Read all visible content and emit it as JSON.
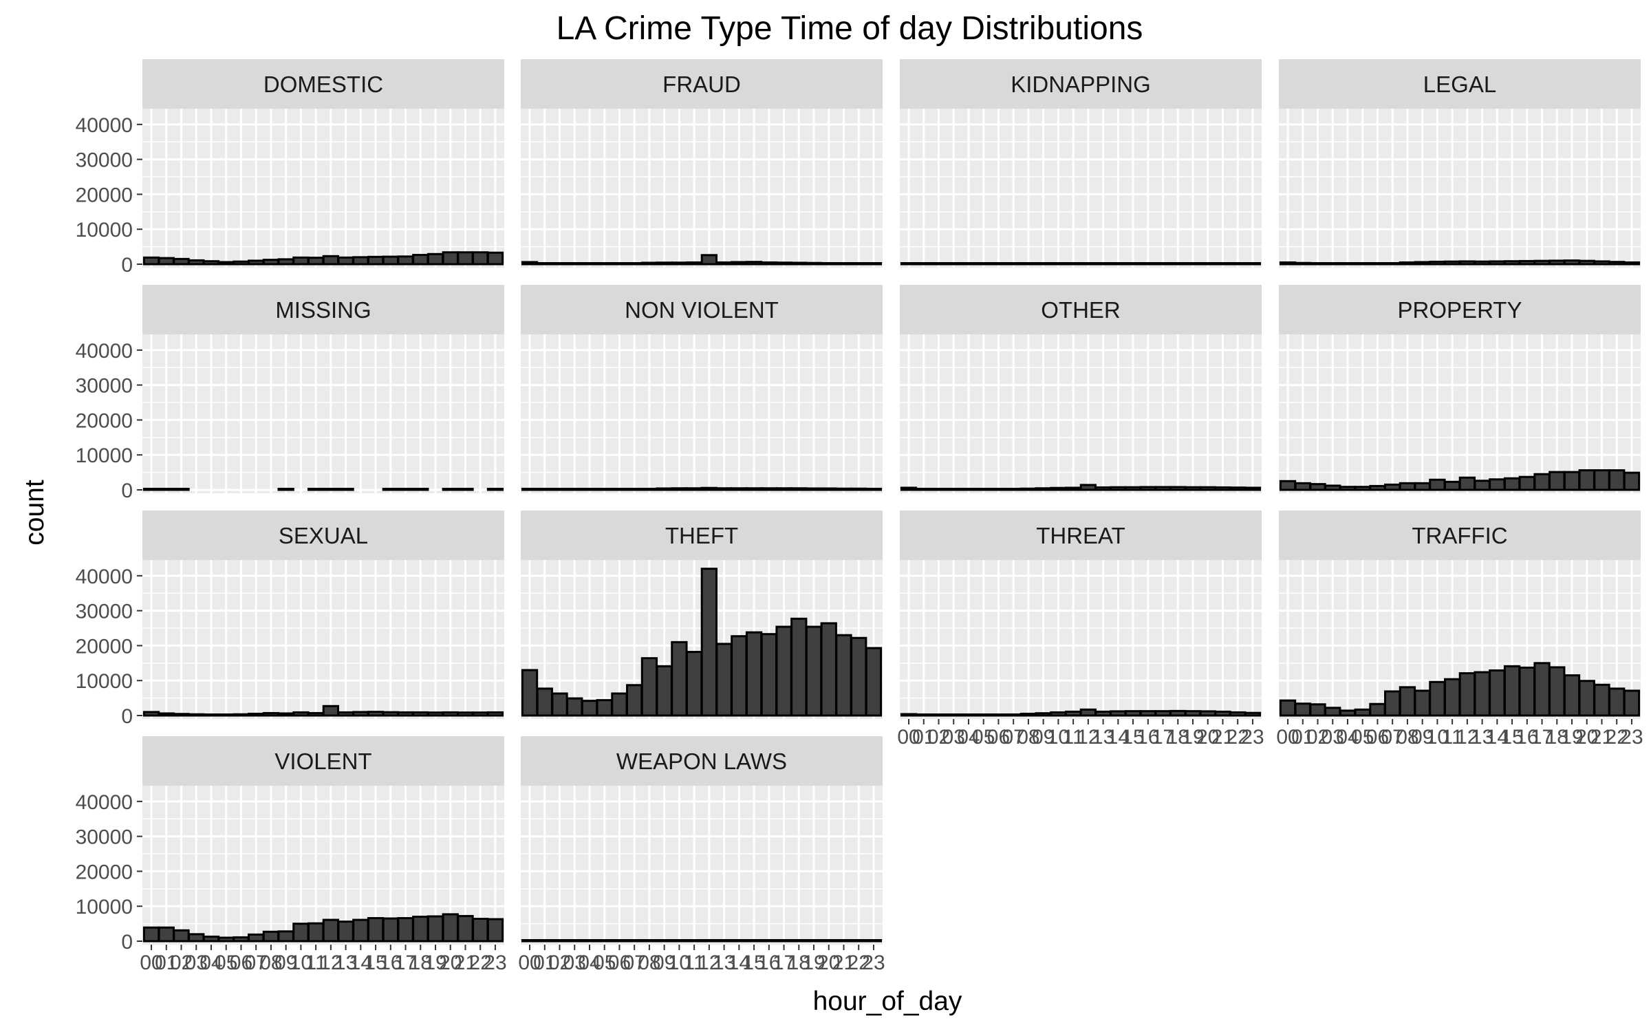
{
  "chart_data": {
    "type": "bar",
    "title": "LA Crime Type Time of day Distributions",
    "xlabel": "hour_of_day",
    "ylabel": "count",
    "x_tick_labels": [
      "00",
      "01",
      "02",
      "03",
      "04",
      "05",
      "06",
      "07",
      "08",
      "09",
      "10",
      "11",
      "12",
      "13",
      "14",
      "15",
      "16",
      "17",
      "18",
      "19",
      "20",
      "21",
      "22",
      "23"
    ],
    "y_ticks": [
      0,
      10000,
      20000,
      30000,
      40000
    ],
    "ylim": [
      0,
      44500
    ],
    "facet_layout": {
      "columns": 4,
      "rows": 4
    },
    "grid": true,
    "colors": {
      "bar_fill": "#404040",
      "bar_stroke": "#000000",
      "panel_bg": "#ebebeb",
      "strip_bg": "#d9d9d9",
      "grid": "#ffffff"
    },
    "facets": [
      {
        "name": "DOMESTIC",
        "values": [
          1900,
          1750,
          1500,
          1100,
          850,
          600,
          750,
          1000,
          1250,
          1400,
          1900,
          1850,
          2300,
          1900,
          2000,
          2100,
          2150,
          2200,
          2650,
          2900,
          3400,
          3400,
          3400,
          3300
        ]
      },
      {
        "name": "FRAUD",
        "values": [
          600,
          200,
          150,
          120,
          100,
          100,
          150,
          200,
          400,
          450,
          450,
          500,
          2600,
          500,
          600,
          650,
          500,
          450,
          400,
          350,
          300,
          250,
          250,
          200
        ]
      },
      {
        "name": "KIDNAPPING",
        "values": [
          60,
          50,
          40,
          30,
          25,
          20,
          20,
          25,
          30,
          40,
          45,
          50,
          60,
          55,
          60,
          65,
          70,
          70,
          75,
          75,
          70,
          70,
          65,
          60
        ]
      },
      {
        "name": "LEGAL",
        "values": [
          500,
          350,
          250,
          200,
          150,
          150,
          200,
          300,
          500,
          600,
          700,
          750,
          800,
          750,
          800,
          850,
          900,
          950,
          1000,
          1050,
          950,
          800,
          650,
          500
        ]
      },
      {
        "name": "MISSING",
        "values": [
          30,
          20,
          15,
          0,
          0,
          0,
          0,
          0,
          0,
          15,
          0,
          20,
          30,
          30,
          0,
          0,
          20,
          25,
          30,
          0,
          30,
          30,
          0,
          20
        ]
      },
      {
        "name": "NON VIOLENT",
        "values": [
          300,
          250,
          200,
          150,
          100,
          100,
          150,
          200,
          300,
          400,
          450,
          450,
          550,
          450,
          450,
          450,
          450,
          450,
          450,
          400,
          400,
          350,
          350,
          300
        ]
      },
      {
        "name": "OTHER",
        "values": [
          600,
          300,
          250,
          200,
          150,
          150,
          200,
          250,
          350,
          450,
          550,
          600,
          1400,
          700,
          750,
          750,
          800,
          800,
          800,
          750,
          750,
          700,
          650,
          600
        ]
      },
      {
        "name": "PROPERTY",
        "values": [
          2500,
          1900,
          1650,
          1200,
          850,
          850,
          1100,
          1500,
          1900,
          1900,
          2900,
          2300,
          3500,
          2600,
          3000,
          3300,
          3700,
          4500,
          5100,
          5100,
          5600,
          5600,
          5600,
          4900
        ]
      },
      {
        "name": "SEXUAL",
        "values": [
          1000,
          600,
          450,
          350,
          250,
          250,
          350,
          500,
          700,
          600,
          900,
          700,
          2700,
          900,
          1000,
          1050,
          950,
          900,
          900,
          850,
          900,
          850,
          850,
          900
        ]
      },
      {
        "name": "THEFT",
        "values": [
          13000,
          7700,
          6300,
          4900,
          4200,
          4400,
          6300,
          8700,
          16400,
          14100,
          21000,
          18200,
          42000,
          20500,
          22700,
          23800,
          23300,
          25400,
          27700,
          25400,
          26400,
          23000,
          22200,
          19300
        ]
      },
      {
        "name": "THREAT",
        "values": [
          400,
          300,
          250,
          200,
          150,
          150,
          200,
          300,
          500,
          650,
          900,
          1100,
          1700,
          1100,
          1200,
          1250,
          1250,
          1250,
          1300,
          1250,
          1200,
          1100,
          900,
          750
        ]
      },
      {
        "name": "TRAFFIC",
        "values": [
          4300,
          3400,
          3200,
          2200,
          1400,
          1700,
          3300,
          6900,
          8100,
          7100,
          9600,
          10400,
          12100,
          12400,
          12900,
          14100,
          13700,
          15000,
          13800,
          11500,
          9900,
          8800,
          7700,
          7100
        ]
      },
      {
        "name": "VIOLENT",
        "values": [
          3900,
          3900,
          3100,
          2000,
          1300,
          1000,
          1100,
          1900,
          2700,
          2800,
          5000,
          5100,
          6100,
          5600,
          6100,
          6600,
          6500,
          6600,
          7000,
          7100,
          7700,
          7200,
          6400,
          6300
        ]
      },
      {
        "name": "WEAPON LAWS",
        "values": [
          150,
          100,
          80,
          60,
          50,
          50,
          60,
          100,
          150,
          200,
          250,
          250,
          300,
          300,
          300,
          300,
          300,
          300,
          300,
          300,
          300,
          300,
          300,
          250
        ]
      }
    ]
  }
}
